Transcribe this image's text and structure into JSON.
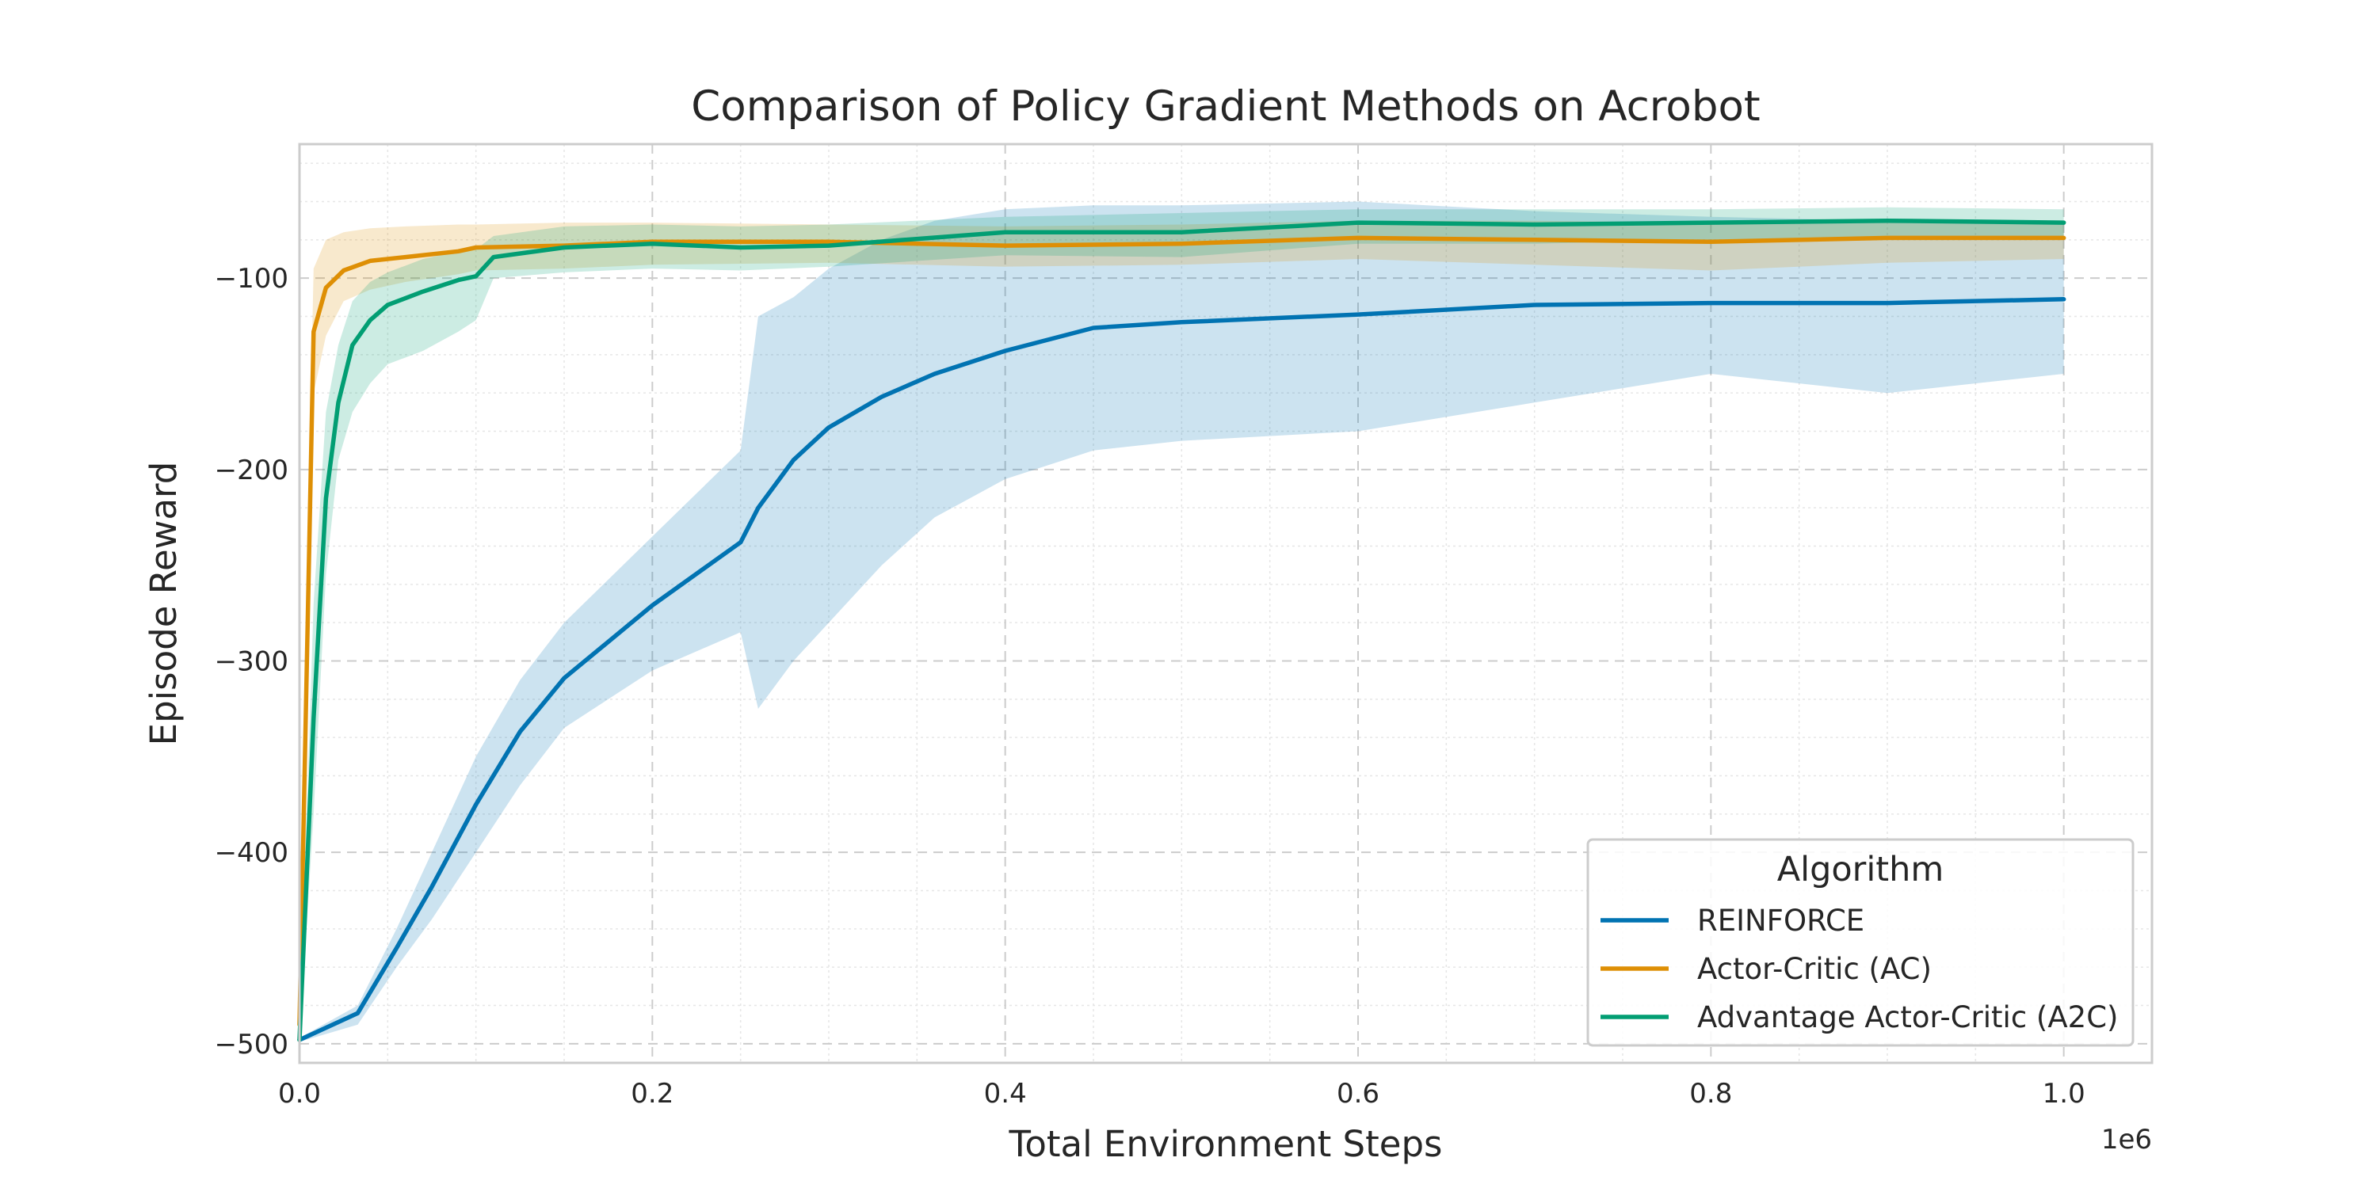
{
  "chart_data": {
    "type": "line",
    "title": "Comparison of Policy Gradient Methods on Acrobot",
    "xlabel": "Total Environment Steps",
    "ylabel": "Episode Reward",
    "x_offset_label": "1e6",
    "xlim": [
      0,
      1.05
    ],
    "ylim": [
      -510,
      -30
    ],
    "x_ticks": [
      0.0,
      0.2,
      0.4,
      0.6,
      0.8,
      1.0
    ],
    "x_tick_labels": [
      "0.0",
      "0.2",
      "0.4",
      "0.6",
      "0.8",
      "1.0"
    ],
    "y_ticks": [
      -500,
      -400,
      -300,
      -200,
      -100
    ],
    "y_tick_labels": [
      "−500",
      "−400",
      "−300",
      "−200",
      "−100"
    ],
    "grid": true,
    "legend": {
      "title": "Algorithm",
      "position": "lower-right"
    },
    "series": [
      {
        "name": "REINFORCE",
        "color": "#0173b2",
        "x": [
          0.0,
          0.033,
          0.055,
          0.075,
          0.1,
          0.125,
          0.15,
          0.2,
          0.25,
          0.26,
          0.28,
          0.3,
          0.33,
          0.36,
          0.4,
          0.45,
          0.5,
          0.6,
          0.7,
          0.8,
          0.9,
          1.0
        ],
        "mean": [
          -498,
          -484,
          -450,
          -418,
          -375,
          -337,
          -309,
          -271,
          -238,
          -220,
          -195,
          -178,
          -162,
          -150,
          -138,
          -126,
          -123,
          -119,
          -114,
          -113,
          -113,
          -111
        ],
        "upper": [
          -497,
          -480,
          -440,
          -400,
          -350,
          -310,
          -280,
          -235,
          -190,
          -120,
          -110,
          -95,
          -80,
          -70,
          -64,
          -62,
          -62,
          -60,
          -65,
          -68,
          -70,
          -70
        ],
        "lower": [
          -499,
          -490,
          -460,
          -435,
          -400,
          -365,
          -335,
          -305,
          -285,
          -325,
          -300,
          -280,
          -250,
          -225,
          -205,
          -190,
          -185,
          -180,
          -165,
          -150,
          -160,
          -150
        ]
      },
      {
        "name": "Actor-Critic (AC)",
        "color": "#de8f05",
        "x": [
          0.0,
          0.008,
          0.015,
          0.025,
          0.04,
          0.06,
          0.09,
          0.1,
          0.15,
          0.2,
          0.3,
          0.4,
          0.5,
          0.6,
          0.7,
          0.8,
          0.9,
          1.0
        ],
        "mean": [
          -490,
          -128,
          -105,
          -96,
          -91,
          -89,
          -86,
          -84,
          -83,
          -81,
          -81,
          -83,
          -82,
          -79,
          -80,
          -81,
          -79,
          -79
        ],
        "upper": [
          -440,
          -95,
          -80,
          -76,
          -74,
          -73,
          -72,
          -72,
          -71,
          -71,
          -72,
          -73,
          -72,
          -70,
          -70,
          -71,
          -70,
          -71
        ],
        "lower": [
          -499,
          -160,
          -130,
          -112,
          -106,
          -102,
          -98,
          -96,
          -95,
          -93,
          -92,
          -94,
          -93,
          -90,
          -93,
          -96,
          -92,
          -90
        ]
      },
      {
        "name": "Advantage Actor-Critic (A2C)",
        "color": "#029e73",
        "x": [
          0.0,
          0.008,
          0.015,
          0.022,
          0.03,
          0.04,
          0.05,
          0.07,
          0.09,
          0.1,
          0.11,
          0.15,
          0.2,
          0.25,
          0.3,
          0.4,
          0.5,
          0.6,
          0.7,
          0.8,
          0.9,
          1.0
        ],
        "mean": [
          -498,
          -330,
          -215,
          -165,
          -135,
          -122,
          -114,
          -107,
          -101,
          -99,
          -89,
          -84,
          -82,
          -84,
          -83,
          -76,
          -76,
          -71,
          -72,
          -71,
          -70,
          -71
        ],
        "upper": [
          -495,
          -270,
          -170,
          -135,
          -112,
          -102,
          -97,
          -90,
          -86,
          -85,
          -78,
          -73,
          -72,
          -73,
          -72,
          -68,
          -66,
          -64,
          -64,
          -64,
          -63,
          -64
        ],
        "lower": [
          -499,
          -380,
          -255,
          -195,
          -170,
          -155,
          -145,
          -138,
          -128,
          -122,
          -100,
          -97,
          -95,
          -96,
          -94,
          -88,
          -89,
          -82,
          -82,
          -80,
          -80,
          -80
        ]
      }
    ]
  }
}
